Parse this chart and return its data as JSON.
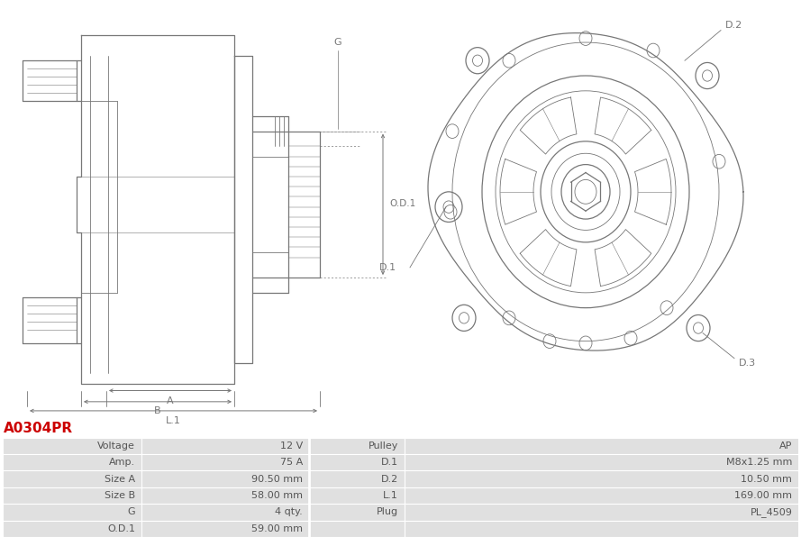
{
  "title": "A0304PR",
  "title_color": "#cc0000",
  "bg_color": "#ffffff",
  "table_rows": [
    [
      "Voltage",
      "12 V",
      "Pulley",
      "AP"
    ],
    [
      "Amp.",
      "75 A",
      "D.1",
      "M8x1.25 mm"
    ],
    [
      "Size A",
      "90.50 mm",
      "D.2",
      "10.50 mm"
    ],
    [
      "Size B",
      "58.00 mm",
      "L.1",
      "169.00 mm"
    ],
    [
      "G",
      "4 qty.",
      "Plug",
      "PL_4509"
    ],
    [
      "O.D.1",
      "59.00 mm",
      "",
      ""
    ]
  ],
  "table_bg_odd": "#e0e0e0",
  "table_bg_even": "#ebebeb",
  "text_color": "#555555",
  "line_color": "#666666"
}
